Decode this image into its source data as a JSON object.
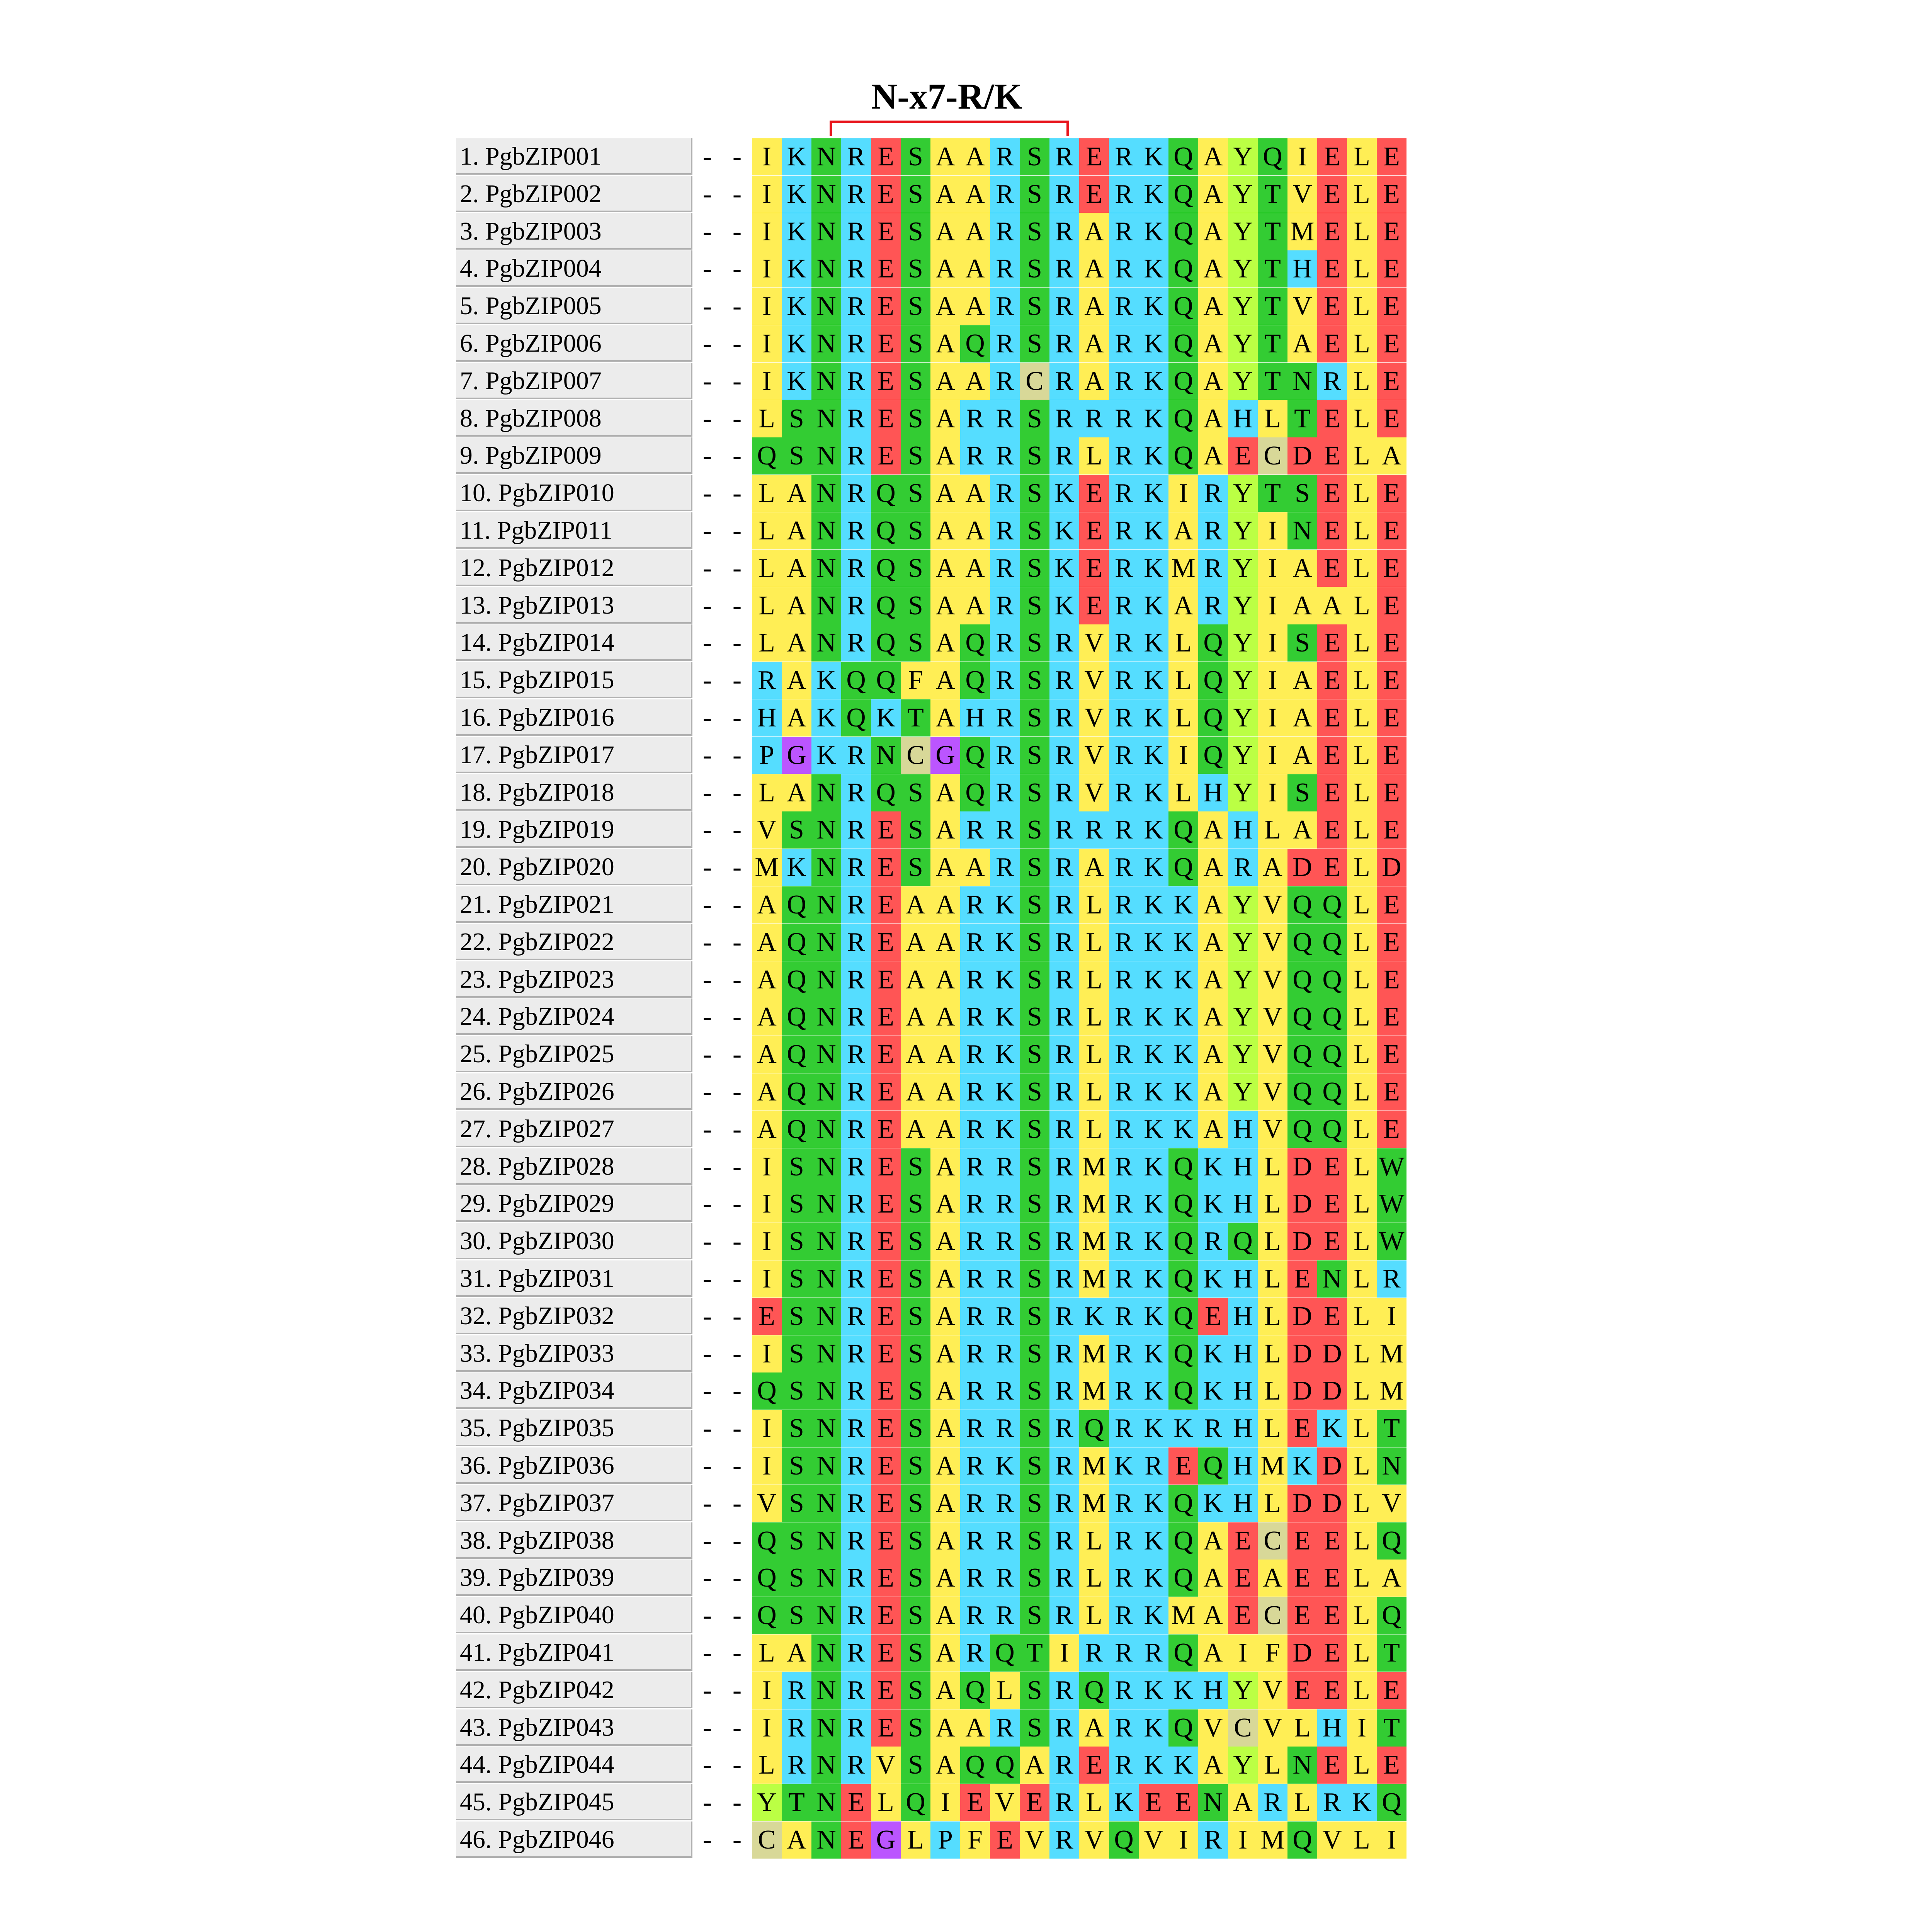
{
  "motif_label": "N-x7-R/K",
  "residue_colors": {
    "A": "#ffee55",
    "I": "#ffee55",
    "L": "#ffee55",
    "M": "#ffee55",
    "F": "#ffee55",
    "V": "#ffee55",
    "S": "#33cc33",
    "T": "#33cc33",
    "N": "#33cc33",
    "Q": "#33cc33",
    "R": "#55ddff",
    "K": "#55ddff",
    "H": "#55ddff",
    "E": "#ff5555",
    "D": "#ff5555",
    "G": "#bb55ff",
    "P": "#55ddff",
    "C": "#d8d898",
    "Y": "#bbff44",
    "W": "#33cc33",
    "-": "#ffffff"
  },
  "sequences": [
    {
      "label": "1. PgbZIP001",
      "residues": "--IKNRESAARSRERKQAYQIELE"
    },
    {
      "label": "2. PgbZIP002",
      "residues": "--IKNRESAARSRERKQAYTVELE"
    },
    {
      "label": "3. PgbZIP003",
      "residues": "--IKNRESAARSRARKQAYTMELE"
    },
    {
      "label": "4. PgbZIP004",
      "residues": "--IKNRESAARSRARKQAYTHELE"
    },
    {
      "label": "5. PgbZIP005",
      "residues": "--IKNRESAARSRARKQAYTVELE"
    },
    {
      "label": "6. PgbZIP006",
      "residues": "--IKNRESAQRSRARKQAYTAELE"
    },
    {
      "label": "7. PgbZIP007",
      "residues": "--IKNRESAARCRARKQAYTNRLE"
    },
    {
      "label": "8. PgbZIP008",
      "residues": "--LSNRESARRSRRRKQAHLTELE"
    },
    {
      "label": "9. PgbZIP009",
      "residues": "--QSNRESARRSRLRKQAECDELA"
    },
    {
      "label": "10. PgbZIP010",
      "residues": "--LANRQSAARSKERKIRYTSELE"
    },
    {
      "label": "11. PgbZIP011",
      "residues": "--LANRQSAARSKERKARYINELE"
    },
    {
      "label": "12. PgbZIP012",
      "residues": "--LANRQSAARSKERKMRYIAELE"
    },
    {
      "label": "13. PgbZIP013",
      "residues": "--LANRQSAARSKERKARYIAALE"
    },
    {
      "label": "14. PgbZIP014",
      "residues": "--LANRQSAQRSRVRKLQYISELE"
    },
    {
      "label": "15. PgbZIP015",
      "residues": "--RAKQQFAQRSRVRKLQYIAELE"
    },
    {
      "label": "16. PgbZIP016",
      "residues": "--HAKQKTAHRSRVRKLQYIAELE"
    },
    {
      "label": "17. PgbZIP017",
      "residues": "--PGKRNCGQRSRVRKIQYIAELE"
    },
    {
      "label": "18. PgbZIP018",
      "residues": "--LANRQSAQRSRVRKLHYISELE"
    },
    {
      "label": "19. PgbZIP019",
      "residues": "--VSNRESARRSRRRKQAHLAELE"
    },
    {
      "label": "20. PgbZIP020",
      "residues": "--MKNRESAARSRARKQARADELD"
    },
    {
      "label": "21. PgbZIP021",
      "residues": "--AQNREAARKSRLRKKAYVQQLE"
    },
    {
      "label": "22. PgbZIP022",
      "residues": "--AQNREAARKSRLRKKAYVQQLE"
    },
    {
      "label": "23. PgbZIP023",
      "residues": "--AQNREAARKSRLRKKAYVQQLE"
    },
    {
      "label": "24. PgbZIP024",
      "residues": "--AQNREAARKSRLRKKAYVQQLE"
    },
    {
      "label": "25. PgbZIP025",
      "residues": "--AQNREAARKSRLRKKAYVQQLE"
    },
    {
      "label": "26. PgbZIP026",
      "residues": "--AQNREAARKSRLRKKAYVQQLE"
    },
    {
      "label": "27. PgbZIP027",
      "residues": "--AQNREAARKSRLRKKAHVQQLE"
    },
    {
      "label": "28. PgbZIP028",
      "residues": "--ISNRESARRSRMRKQKHLDELW"
    },
    {
      "label": "29. PgbZIP029",
      "residues": "--ISNRESARRSRMRKQKHLDELW"
    },
    {
      "label": "30. PgbZIP030",
      "residues": "--ISNRESARRSRMRKQRQLDELW"
    },
    {
      "label": "31. PgbZIP031",
      "residues": "--ISNRESARRSRMRKQKHLENLR"
    },
    {
      "label": "32. PgbZIP032",
      "residues": "--ESNRESARRSRKRKQEHLDELI"
    },
    {
      "label": "33. PgbZIP033",
      "residues": "--ISNRESARRSRMRKQKHLDDLM"
    },
    {
      "label": "34. PgbZIP034",
      "residues": "--QSNRESARRSRMRKQKHLDDLM"
    },
    {
      "label": "35. PgbZIP035",
      "residues": "--ISNRESARRSRQRKKRHLEKLT"
    },
    {
      "label": "36. PgbZIP036",
      "residues": "--ISNRESARKSRMKREQHMKDLN"
    },
    {
      "label": "37. PgbZIP037",
      "residues": "--VSNRESARRSRMRKQKHLDDLV"
    },
    {
      "label": "38. PgbZIP038",
      "residues": "--QSNRESARRSRLRKQAECEELQ"
    },
    {
      "label": "39. PgbZIP039",
      "residues": "--QSNRESARRSRLRKQAEAEELA"
    },
    {
      "label": "40. PgbZIP040",
      "residues": "--QSNRESARRSRLRKMAECEELQ"
    },
    {
      "label": "41. PgbZIP041",
      "residues": "--LANRESARQTIRRRQAIFDELT"
    },
    {
      "label": "42. PgbZIP042",
      "residues": "--IRNRESAQLSRQRKKHYVEELE"
    },
    {
      "label": "43. PgbZIP043",
      "residues": "--IRNRESAARSRARKQVCVLHIT"
    },
    {
      "label": "44. PgbZIP044",
      "residues": "--LRNRVSAQQARERKKAYLNELE"
    },
    {
      "label": "45. PgbZIP045",
      "residues": "--YTNELQIEVERLKEENARLRKQ"
    },
    {
      "label": "46. PgbZIP046",
      "residues": "--CANEGLPFEVRVQVIRIMQVLI"
    }
  ]
}
